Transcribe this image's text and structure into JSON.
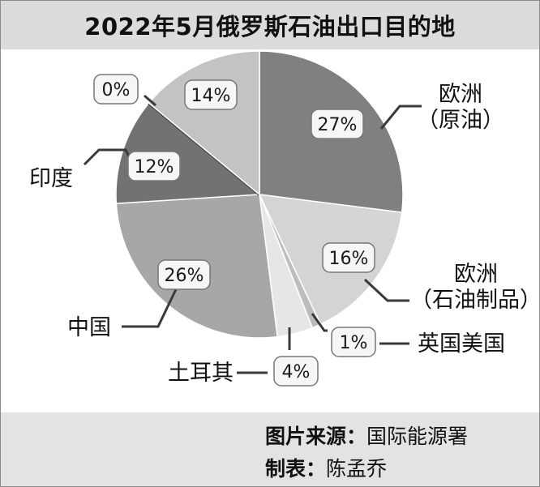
{
  "chart_data": {
    "type": "pie",
    "title": "2022年5月俄罗斯石油出口目的地",
    "slices": [
      {
        "label": "欧洲（原油）",
        "label_lines": [
          "欧洲",
          "（原油）"
        ],
        "value": 27,
        "value_label": "27%",
        "color": "#808080"
      },
      {
        "label": "欧洲（石油制品）",
        "label_lines": [
          "欧洲",
          "（石油制品）"
        ],
        "value": 16,
        "value_label": "16%",
        "color": "#d4d4d4"
      },
      {
        "label": "英国美国",
        "label_lines": [
          "英国美国"
        ],
        "value": 1,
        "value_label": "1%",
        "color": "#bdbdbd"
      },
      {
        "label": "土耳其",
        "label_lines": [
          "土耳其"
        ],
        "value": 4,
        "value_label": "4%",
        "color": "#e6e6e6"
      },
      {
        "label": "中国",
        "label_lines": [
          "中国"
        ],
        "value": 26,
        "value_label": "26%",
        "color": "#a7a7a7"
      },
      {
        "label": "印度",
        "label_lines": [
          "印度"
        ],
        "value": 12,
        "value_label": "12%",
        "color": "#727272"
      },
      {
        "label": "",
        "label_lines": [],
        "value": 0,
        "value_label": "0%",
        "color": "#4a4a4a"
      },
      {
        "label": "",
        "label_lines": [],
        "value": 14,
        "value_label": "14%",
        "color": "#c3c3c3"
      }
    ]
  },
  "footer": {
    "source_key": "图片来源：",
    "source_value": "国际能源署",
    "author_key": "制表：",
    "author_value": "陈孟乔"
  }
}
